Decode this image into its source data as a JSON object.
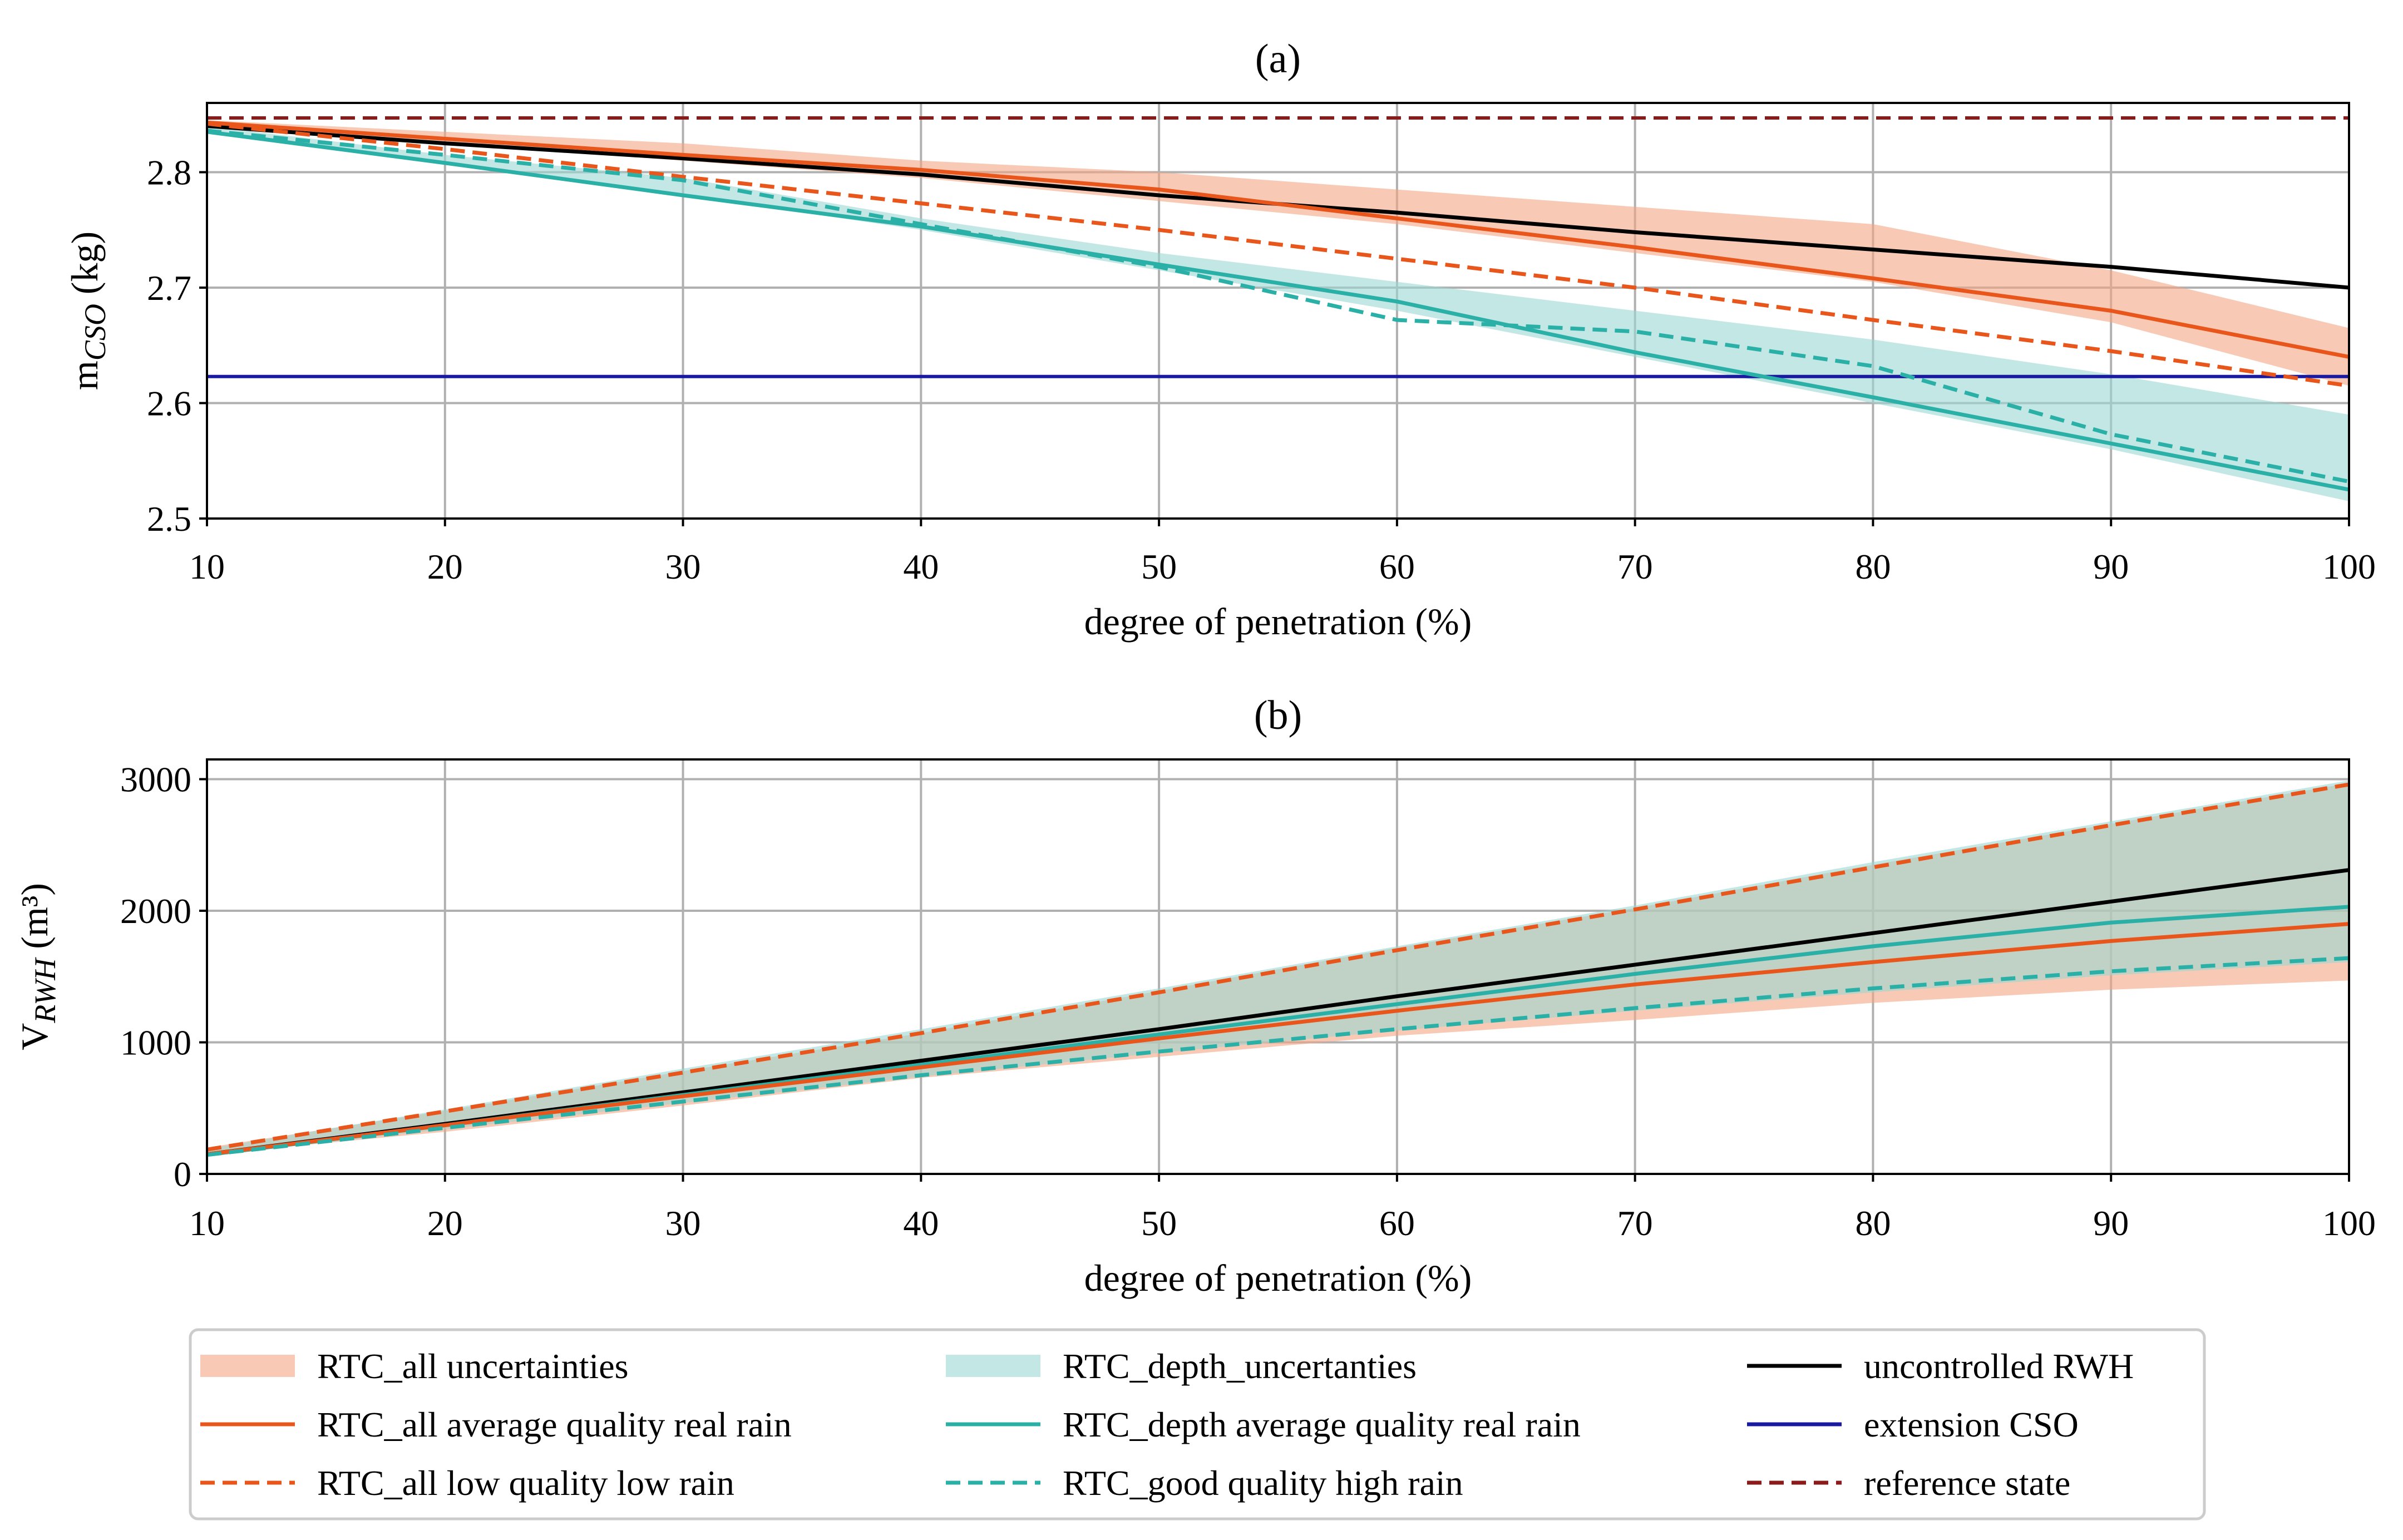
{
  "chart_data": [
    {
      "type": "line",
      "panel": "(a)",
      "title": "(a)",
      "xlabel": "degree of penetration (%)",
      "ylabel_main": "m",
      "ylabel_sub": "CSO",
      "ylabel_unit": " (kg)",
      "xlim": [
        10,
        100
      ],
      "ylim": [
        2.5,
        2.86
      ],
      "xticks": [
        10,
        20,
        30,
        40,
        50,
        60,
        70,
        80,
        90,
        100
      ],
      "yticks": [
        2.5,
        2.6,
        2.7,
        2.8
      ],
      "ytick_labels": [
        "2.5",
        "2.6",
        "2.7",
        "2.8"
      ],
      "grid": true,
      "x": [
        10,
        20,
        30,
        40,
        50,
        60,
        70,
        80,
        90,
        100
      ],
      "bands": [
        {
          "name": "RTC_all uncertainties",
          "color": "#f4a582",
          "opacity": 0.6,
          "lower": [
            2.84,
            2.825,
            2.81,
            2.795,
            2.775,
            2.755,
            2.73,
            2.705,
            2.67,
            2.615
          ],
          "upper": [
            2.845,
            2.835,
            2.825,
            2.81,
            2.8,
            2.785,
            2.77,
            2.755,
            2.715,
            2.665
          ]
        },
        {
          "name": "RTC_depth_uncertanties",
          "color": "#9bd7d2",
          "opacity": 0.6,
          "lower": [
            2.835,
            2.808,
            2.78,
            2.75,
            2.715,
            2.68,
            2.64,
            2.6,
            2.56,
            2.515
          ],
          "upper": [
            2.84,
            2.815,
            2.795,
            2.76,
            2.73,
            2.705,
            2.68,
            2.655,
            2.625,
            2.59
          ]
        }
      ],
      "series": [
        {
          "name": "uncontrolled RWH",
          "color": "#000000",
          "dash": "solid",
          "values": [
            2.84,
            2.825,
            2.812,
            2.798,
            2.78,
            2.765,
            2.748,
            2.733,
            2.718,
            2.7
          ]
        },
        {
          "name": "RTC_all average quality real rain",
          "color": "#e8561c",
          "dash": "solid",
          "values": [
            2.843,
            2.829,
            2.815,
            2.802,
            2.785,
            2.76,
            2.735,
            2.708,
            2.68,
            2.64
          ]
        },
        {
          "name": "RTC_all low quality low rain",
          "color": "#e8561c",
          "dash": "dashed",
          "values": [
            2.842,
            2.82,
            2.796,
            2.773,
            2.75,
            2.725,
            2.7,
            2.672,
            2.645,
            2.615
          ]
        },
        {
          "name": "RTC_depth average quality real rain",
          "color": "#2bb0a8",
          "dash": "solid",
          "values": [
            2.835,
            2.808,
            2.78,
            2.753,
            2.72,
            2.688,
            2.644,
            2.605,
            2.565,
            2.525
          ]
        },
        {
          "name": "RTC_good quality high rain",
          "color": "#2bb0a8",
          "dash": "dashed",
          "values": [
            2.836,
            2.815,
            2.793,
            2.755,
            2.718,
            2.672,
            2.662,
            2.632,
            2.573,
            2.532
          ]
        }
      ],
      "hlines": [
        {
          "name": "extension CSO",
          "color": "#1a1aa0",
          "dash": "solid",
          "y": 2.623
        },
        {
          "name": "reference state",
          "color": "#8b1a1a",
          "dash": "dashed",
          "y": 2.847
        }
      ]
    },
    {
      "type": "line",
      "panel": "(b)",
      "title": "(b)",
      "xlabel": "degree of penetration (%)",
      "ylabel_main": "V",
      "ylabel_sub": "RWH",
      "ylabel_unit": " (m³)",
      "xlim": [
        10,
        100
      ],
      "ylim": [
        0,
        3150
      ],
      "xticks": [
        10,
        20,
        30,
        40,
        50,
        60,
        70,
        80,
        90,
        100
      ],
      "yticks": [
        0,
        1000,
        2000,
        3000
      ],
      "ytick_labels": [
        "0",
        "1000",
        "2000",
        "3000"
      ],
      "grid": true,
      "x": [
        10,
        20,
        30,
        40,
        50,
        60,
        70,
        80,
        90,
        100
      ],
      "bands": [
        {
          "name": "RTC_all uncertainties",
          "color": "#f4a582",
          "opacity": 0.6,
          "lower": [
            150,
            320,
            520,
            730,
            890,
            1050,
            1170,
            1300,
            1400,
            1470
          ],
          "upper": [
            200,
            480,
            780,
            1070,
            1390,
            1720,
            2020,
            2350,
            2660,
            2970
          ]
        },
        {
          "name": "RTC_depth_uncertanties",
          "color": "#9bd7d2",
          "opacity": 0.6,
          "lower": [
            140,
            340,
            540,
            740,
            920,
            1090,
            1240,
            1380,
            1510,
            1610
          ],
          "upper": [
            190,
            490,
            800,
            1100,
            1410,
            1730,
            2040,
            2370,
            2680,
            2990
          ]
        }
      ],
      "series": [
        {
          "name": "uncontrolled RWH",
          "color": "#000000",
          "dash": "solid",
          "values": [
            150,
            380,
            620,
            860,
            1100,
            1350,
            1590,
            1830,
            2070,
            2310
          ]
        },
        {
          "name": "RTC_all low quality low rain",
          "color": "#e8561c",
          "dash": "dashed",
          "values": [
            185,
            475,
            770,
            1070,
            1380,
            1700,
            2010,
            2330,
            2650,
            2960
          ]
        },
        {
          "name": "RTC_depth average quality real rain",
          "color": "#2bb0a8",
          "dash": "solid",
          "values": [
            145,
            370,
            600,
            830,
            1060,
            1290,
            1520,
            1730,
            1910,
            2030
          ]
        },
        {
          "name": "RTC_all average quality real rain",
          "color": "#e8561c",
          "dash": "solid",
          "values": [
            150,
            370,
            590,
            810,
            1030,
            1240,
            1440,
            1610,
            1770,
            1900
          ]
        },
        {
          "name": "RTC_good quality high rain",
          "color": "#2bb0a8",
          "dash": "dashed",
          "values": [
            145,
            350,
            550,
            750,
            930,
            1100,
            1260,
            1410,
            1540,
            1640
          ]
        }
      ],
      "hlines": []
    }
  ],
  "legend": {
    "placement": "bottom",
    "entries": [
      {
        "label": "RTC_all uncertainties",
        "kind": "patch",
        "color": "#f4a582"
      },
      {
        "label": "RTC_all average quality real rain",
        "kind": "line",
        "color": "#e8561c",
        "dash": "solid"
      },
      {
        "label": "RTC_all low quality low rain",
        "kind": "line",
        "color": "#e8561c",
        "dash": "dashed"
      },
      {
        "label": "RTC_depth_uncertanties",
        "kind": "patch",
        "color": "#9bd7d2"
      },
      {
        "label": "RTC_depth average quality real rain",
        "kind": "line",
        "color": "#2bb0a8",
        "dash": "solid"
      },
      {
        "label": "RTC_good quality high rain",
        "kind": "line",
        "color": "#2bb0a8",
        "dash": "dashed"
      },
      {
        "label": "uncontrolled RWH",
        "kind": "line",
        "color": "#000000",
        "dash": "solid"
      },
      {
        "label": "extension CSO",
        "kind": "line",
        "color": "#1a1aa0",
        "dash": "solid"
      },
      {
        "label": "reference state",
        "kind": "line",
        "color": "#8b1a1a",
        "dash": "dashed"
      }
    ]
  }
}
